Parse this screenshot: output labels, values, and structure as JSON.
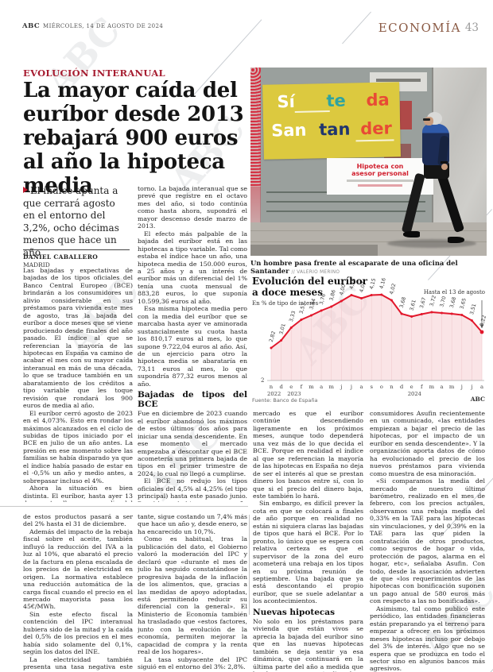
{
  "header": {
    "brand": "ABC",
    "date": "MIÉRCOLES, 14 DE AGOSTO DE 2024",
    "section": "ECONOMÍA",
    "page_number": "43"
  },
  "article": {
    "kicker": "EVOLUCIÓN INTERANUAL",
    "headline": "La mayor caída del euríbor desde 2013 rebajará 900 euros al año la hipoteca media",
    "standfirst": "El índice apunta a que cerrará agosto en el entorno del 3,2%, ocho décimas menos que hace un año",
    "author": "DANIEL CABALLERO",
    "location": "MADRID",
    "col1": [
      {
        "s": "cont",
        "t": "Las bajadas y expectativas de bajadas de los tipos oficiales del Banco Central Europeo (BCE) brindarán a los consumidores un alivio considerable en sus préstamos para vivienda este mes de agosto, tras la bajada del euríbor a doce meses que se viene produciendo desde finales del año pasado. El índice al que se referencian la mayoría de las hipotecas en España va camino de acabar el mes con su mayor caída interanual en más de una década, lo que se traduce también en un abaratamiento de los créditos a tipo variable que les toque revisión que rondará los 900 euros de media al año."
      },
      {
        "s": "p",
        "t": "El euríbor cerró agosto de 2023 en el 4,073%. Esto era rondar los máximos alcanzados en el ciclo de subidas de tipos iniciado por el BCE en julio de un año antes. La presión en ese momento sobre las familias se había disparado ya que el índice había pasado de estar en el -0,5% un año y medio antes, a sobrepasar incluso el 4%."
      },
      {
        "s": "p",
        "t": "Ahora la situación es bien distinta. El euríbor, hasta ayer 13 de agosto, lleva una media del 3,221%. Esto son 0,852 puntos porcentuales menos que en el mismo periodo del año pasado y lo esperado es que cierre el mes en ese en-"
      }
    ],
    "col2": [
      {
        "s": "cont",
        "t": "torno. La bajada interanual que se prevé que registre en el octavo mes del año, si todo continúa como hasta ahora, supondrá el mayor descenso desde marzo de 2013."
      },
      {
        "s": "p",
        "t": "El efecto más palpable de la bajada del euríbor está en las hipotecas a tipo variable. Tal como estaba el índice hace un año, una hipoteca media de 150.000 euros, a 25 años y a un interés de euríbor más un diferencial del 1% tenía una cuota mensual de 883,28 euros, lo que suponía 10.599,36 euros al año."
      },
      {
        "s": "p",
        "t": "Esa misma hipoteca media pero con la media del euríbor que se marcaba hasta ayer ve aminorada sustancialmente su cuota hasta los 810,17 euros al mes, lo que supone 9.722,04 euros al año. Así, de un ejercicio para otro la hipoteca media se abarataría en 73,11 euros al mes, lo que supondría 877,32 euros menos al año."
      },
      {
        "s": "h",
        "t": "Bajadas de tipos del BCE"
      },
      {
        "s": "cont",
        "t": "Fue en diciembre de 2023 cuando el euríbor abandonó los máximos de estos últimos dos años para iniciar una senda descendente. En ese momento el mercado empezaba a descontar que el BCE acometería una primera bajada de tipos en el primer trimestre de 2024, lo cual no llegó a cumplirse."
      },
      {
        "s": "p",
        "t": "El BCE no redujo los tipos oficiales del 4,5% al 4,25% (el tipo principal) hasta este pasado junio. De ahí que hubiera una pequeña travesía por el desierto en el euríbor entre febrero y junio. En julio el índice ya inició una bajada más acusada que se viene acrecentando este agosto."
      },
      {
        "s": "p",
        "t": "Lo esperado por los analistas y el"
      }
    ],
    "col3": [
      {
        "s": "cont",
        "t": "mercado es que el euríbor continúe descendiendo ligeramente en los próximos meses, aunque todo dependerá una vez más de lo que decida el BCE. Porque en realidad el índice al que se referencian la mayoría de las hipotecas en España no deja de ser el interés al que se prestan dinero los bancos entre sí, con lo que si el precio del dinero baja, este también lo hará."
      },
      {
        "s": "p",
        "t": "Sin embargo, es difícil prever la cota en que se colocará a finales de año porque en realidad no están ni siquiera claras las bajadas de tipos que hará el BCE. Por lo pronto, lo único que se espera con relativa certeza es que el supervisor de la zona del euro acometerá una rebaja en los tipos en su próxima reunión de septiembre. Una bajada que ya está descontando el propio euríbor, que se suele adelantar a los acontecimientos."
      },
      {
        "s": "h",
        "t": "Nuevas hipotecas"
      },
      {
        "s": "cont",
        "t": "No solo en los préstamos para vivienda que están vivos se aprecia la bajada del euríbor sino que en las nuevas hipotecas también se deja sentir ya esa dinámica, que continuará en la última parte del año a medida que los bancos vayan actualizando y adecuando su oferta comercial."
      },
      {
        "s": "p",
        "t": "Tal como indicó la asociación de"
      }
    ],
    "col4": [
      {
        "s": "cont",
        "t": "consumidores Asufin recientemente en un comunicado, «las entidades empiezan a bajar el precio de las hipotecas, por el impacto de un euríbor en senda descendente». Y la organización aporta datos de cómo ha evolucionado el precio de los nuevos préstamos para vivienda como muestra de esa minoración."
      },
      {
        "s": "p",
        "t": "«Si comparamos la media del mercado de nuestro último barómetro, realizado en el mes de febrero, con los precios actuales, observamos una rebaja media del 0,33% en la TAE para las hipotecas sin vinculaciones, y del 0,39% en la TAE para las que piden la contratación de otros productos, como seguros de hogar o vida, protección de pagos, alarma en el hogar, etc», señalaba Asufin. Con todo, desde la asociación advierten de que «los requerimientos de las hipotecas con bonificación suponen un pago anual de 580 euros más con respecto a las no bonificadas»."
      },
      {
        "s": "p",
        "t": "Asimismo, tal como publicó este periódico, las entidades financieras están preparando ya el terreno para empezar a ofrecer en los próximos meses hipotecas incluso por debajo del 3% de interés. Algo que no se espera que se produzca en todo el sector sino en algunos bancos más agresivos."
      }
    ]
  },
  "photo": {
    "caption": "Un hombre pasa frente al escaparate de una oficina del Santander",
    "credit": "// VALERIO MERINO",
    "poster_row1": [
      {
        "text": "Sí",
        "color": "#ffffff"
      },
      {
        "text": "te",
        "color": "#2fa3a0"
      },
      {
        "text": "da",
        "color": "#e84b35"
      }
    ],
    "poster_row2": [
      {
        "text": "San",
        "color": "#ffffff"
      },
      {
        "text": "tan",
        "color": "#21366e"
      },
      {
        "text": "der",
        "color": "#e84b35"
      }
    ],
    "poster_sub_line1": "Hipoteca con",
    "poster_sub_line2": "asesor personal"
  },
  "chart_data": {
    "type": "area",
    "title": "Evolución del euríbor a doce meses",
    "subtitle": "En % de tipo de interés",
    "annotation": "Hasta el 13 de agosto",
    "source": "Fuente: Banco de España",
    "credit": "ABC",
    "y_base_label": "2",
    "ylim": [
      2,
      4.3
    ],
    "x_labels": [
      "n",
      "d",
      "e",
      "f",
      "m",
      "a",
      "m",
      "j",
      "j",
      "a",
      "s",
      "o",
      "n",
      "d",
      "e",
      "f",
      "m",
      "a",
      "m",
      "j",
      "j",
      "a"
    ],
    "year_labels": [
      {
        "label": "2022",
        "index": 0
      },
      {
        "label": "2023",
        "index": 2
      },
      {
        "label": "2024",
        "index": 14
      }
    ],
    "values": [
      2.82,
      3.01,
      3.33,
      3.53,
      3.64,
      3.76,
      3.86,
      4.0,
      4.15,
      4.07,
      4.15,
      4.16,
      4.02,
      3.68,
      3.61,
      3.67,
      3.72,
      3.7,
      3.68,
      3.65,
      3.51,
      3.22
    ],
    "point_labels": [
      "2,82",
      "3,01",
      "3,33",
      "3,53",
      "3,64",
      "3,76",
      "3,86",
      "4,00",
      "4,15",
      "4,07",
      "4,15",
      "4,16",
      "4,02",
      "3,68",
      "3,61",
      "3,67",
      "3,72",
      "3,70",
      "3,68",
      "3,65",
      "3,51",
      "3,22"
    ],
    "line_color": "#e2182c",
    "fill_color": "#f6cdd1",
    "grid_color": "#ecc7ca"
  },
  "second_article": {
    "colA": [
      {
        "s": "cont",
        "t": "de estos productos pasará a ser del 2% hasta el 31 de diciembre."
      },
      {
        "s": "p",
        "t": "Además del impacto de la rebaja fiscal sobre el aceite, también influyó la reducción del IVA a la luz al 10%, que abarató el precio de la factura en plena escalada de los precios de la electricidad en origen. La normativa establece una reducción automática de la carga fiscal cuando el precio en el mercado mayorista pasa los 45€/MWh."
      },
      {
        "s": "p",
        "t": "Sin este efecto fiscal la contención del IPC interanual hubiera sido de la mitad y la caída del 0,5% de los precios en el mes había sido solamente del 0,1%, según los datos del INE."
      },
      {
        "s": "p",
        "t": "La electricidad también presenta una tasa negativa este mes y cae un 6% en comparación con junio. No obs-"
      }
    ],
    "colB": [
      {
        "s": "cont",
        "t": "tante, sigue costando un 7,4% más que hace un año y, desde enero, se ha encarecido un 10,7%."
      },
      {
        "s": "p",
        "t": "Como es habitual, tras la publicación del dato, el Gobierno valoró la moderación del IPC y declaró que «durante el mes de julio ha seguido constatándose la progresiva bajada de la inflación de los alimentos, que, gracias a las medidas de apoyo adoptadas, está permitiendo reducir su diferencial con la general». El Ministerio de Economía también ha trasladado que «estos factores, junto con la evolución de la economía, permiten mejorar la capacidad de compra y la renta real de los hogares»."
      },
      {
        "s": "p",
        "t": "La tasa subyacente del IPC siguió en el entorno del 3%: 2,8%."
      }
    ]
  }
}
